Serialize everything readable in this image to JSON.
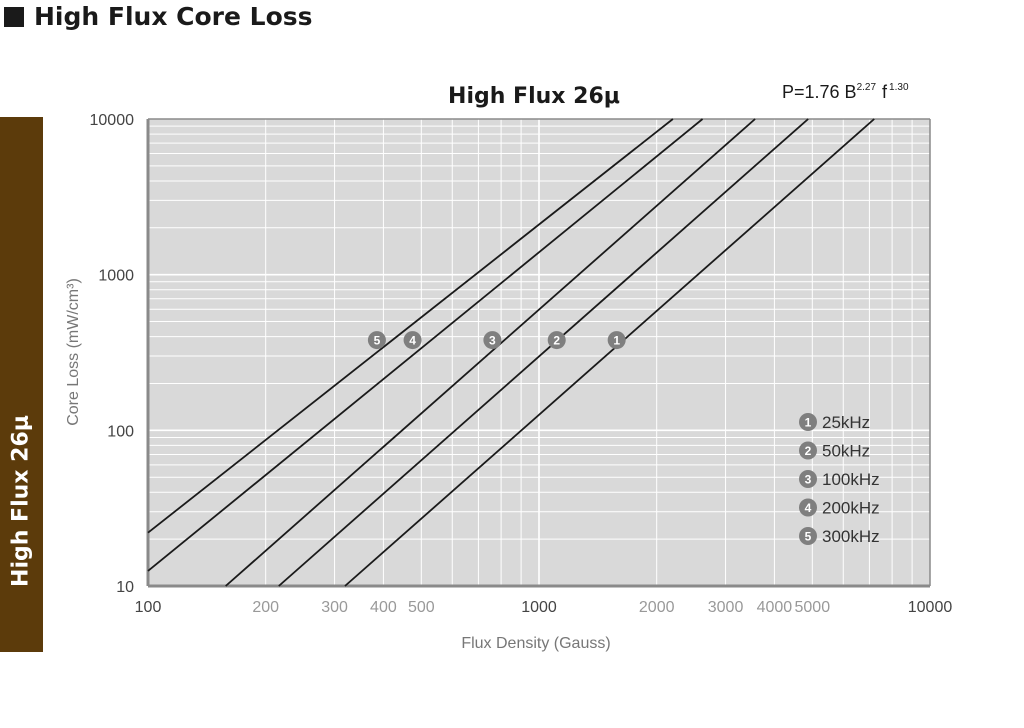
{
  "page": {
    "heading": "High Flux Core Loss",
    "side_tab": "High Flux 26μ"
  },
  "chart_data": {
    "type": "line",
    "title": "High Flux 26μ",
    "formula": {
      "prefix": "P=1.76  B",
      "b_exponent": "2.27",
      "f_symbol": "f",
      "f_exponent": "1.30"
    },
    "xlabel": "Flux Density (Gauss)",
    "ylabel": "Core Loss (mW/cm³)",
    "x_scale": "log",
    "y_scale": "log",
    "xlim": [
      100,
      10000
    ],
    "ylim": [
      10,
      10000
    ],
    "x_ticks": [
      {
        "value": 100,
        "label": "100",
        "major": true
      },
      {
        "value": 200,
        "label": "200",
        "major": false
      },
      {
        "value": 300,
        "label": "300",
        "major": false
      },
      {
        "value": 400,
        "label": "400",
        "major": false
      },
      {
        "value": 500,
        "label": "500",
        "major": false
      },
      {
        "value": 1000,
        "label": "1000",
        "major": true
      },
      {
        "value": 2000,
        "label": "2000",
        "major": false
      },
      {
        "value": 3000,
        "label": "3000",
        "major": false
      },
      {
        "value": 4000,
        "label": "4000",
        "major": false
      },
      {
        "value": 5000,
        "label": "5000",
        "major": false
      },
      {
        "value": 10000,
        "label": "10000",
        "major": true
      }
    ],
    "y_ticks": [
      {
        "value": 10,
        "label": "10"
      },
      {
        "value": 100,
        "label": "100"
      },
      {
        "value": 1000,
        "label": "1000"
      },
      {
        "value": 10000,
        "label": "10000"
      }
    ],
    "grid": true,
    "series": [
      {
        "marker": "1",
        "name": "25kHz",
        "points": [
          [
            319,
            10
          ],
          [
            7200,
            10000
          ]
        ],
        "label_at": [
          1580,
          380
        ]
      },
      {
        "marker": "2",
        "name": "50kHz",
        "points": [
          [
            216,
            10
          ],
          [
            4880,
            10000
          ]
        ],
        "label_at": [
          1110,
          380
        ]
      },
      {
        "marker": "3",
        "name": "100kHz",
        "points": [
          [
            158,
            10
          ],
          [
            3570,
            10000
          ]
        ],
        "label_at": [
          760,
          380
        ]
      },
      {
        "marker": "4",
        "name": "200kHz",
        "points": [
          [
            100,
            12.5
          ],
          [
            2620,
            10000
          ]
        ],
        "label_at": [
          475,
          380
        ]
      },
      {
        "marker": "5",
        "name": "300kHz",
        "points": [
          [
            100,
            22
          ],
          [
            2200,
            10000
          ]
        ],
        "label_at": [
          385,
          380
        ]
      }
    ],
    "legend_position": "bottom-right",
    "colors": {
      "plot_bg": "#d9d9d9",
      "grid": "#ffffff",
      "axis": "#8a8a8a",
      "line": "#1a1a1a",
      "marker_fill": "#7f7f7f",
      "side_tab": "#5c3b0b"
    }
  }
}
